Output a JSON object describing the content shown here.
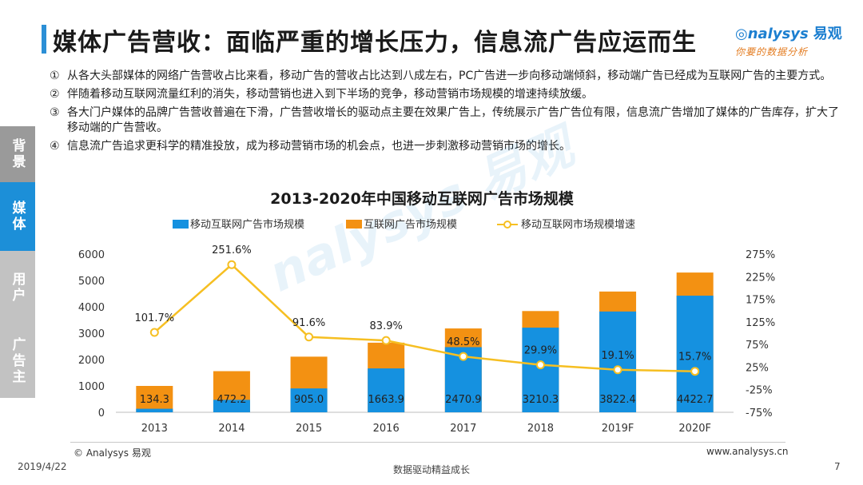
{
  "header": {
    "title": "媒体广告营收：面临严重的增长压力，信息流广告应运而生",
    "logo_text": "nalysys",
    "logo_cn": "易观",
    "logo_slogan": "你要的数据分析"
  },
  "bullets": [
    {
      "num": "①",
      "text": "从各大头部媒体的网络广告营收占比来看，移动广告的营收占比达到八成左右，PC广告进一步向移动端倾斜，移动端广告已经成为互联网广告的主要方式。"
    },
    {
      "num": "②",
      "text": "伴随着移动互联网流量红利的消失，移动营销也进入到下半场的竞争，移动营销市场规模的增速持续放缓。"
    },
    {
      "num": "③",
      "text": "各大门户媒体的品牌广告营收普遍在下滑，广告营收增长的驱动点主要在效果广告上，传统展示广告广告位有限，信息流广告增加了媒体的广告库存，扩大了移动端的广告营收。"
    },
    {
      "num": "④",
      "text": "信息流广告追求更科学的精准投放，成为移动营销市场的机会点，也进一步刺激移动营销市场的增长。"
    }
  ],
  "sidebar": {
    "items": [
      {
        "label": "背景",
        "color": "#9a9a9a"
      },
      {
        "label": "媒体",
        "color": "#1c8fd8"
      },
      {
        "label": "用户",
        "color": "#c2c2c2"
      },
      {
        "label": "广告主",
        "color": "#c2c2c2"
      }
    ]
  },
  "chart_data": {
    "type": "bar",
    "title": "2013-2020年中国移动互联网广告市场规模",
    "categories": [
      "2013",
      "2014",
      "2015",
      "2016",
      "2017",
      "2018",
      "2019F",
      "2020F"
    ],
    "series": [
      {
        "name": "移动互联网广告市场规模",
        "kind": "bar",
        "color": "#1591e0",
        "values": [
          134.3,
          472.2,
          905.0,
          1663.9,
          2470.9,
          3210.3,
          3822.4,
          4422.7
        ],
        "labels": [
          "134.3",
          "472.2",
          "905.0",
          "1663.9",
          "2470.9",
          "3210.3",
          "3822.4",
          "4422.7"
        ]
      },
      {
        "name": "互联网广告市场规模",
        "kind": "bar",
        "color": "#f39112",
        "values": [
          1000,
          1560,
          2110,
          2640,
          3180,
          3840,
          4580,
          5300
        ]
      },
      {
        "name": "移动互联网市场规模增速",
        "kind": "line",
        "axis": "right",
        "color": "#f6bf22",
        "values": [
          101.7,
          251.6,
          91.6,
          83.9,
          48.5,
          29.9,
          19.1,
          15.7
        ],
        "labels": [
          "101.7%",
          "251.6%",
          "91.6%",
          "83.9%",
          "48.5%",
          "29.9%",
          "19.1%",
          "15.7%"
        ]
      }
    ],
    "y_left": {
      "min": 0,
      "max": 6000,
      "ticks": [
        "0",
        "1000",
        "2000",
        "3000",
        "4000",
        "5000",
        "6000"
      ]
    },
    "y_right": {
      "min": -75,
      "max": 275,
      "ticks": [
        "-75%",
        "-25%",
        "25%",
        "75%",
        "125%",
        "175%",
        "225%",
        "275%"
      ]
    },
    "grid": false,
    "legend_position": "top",
    "watermark": "nalysys 易观"
  },
  "footer": {
    "copyright": "© Analysys 易观",
    "url": "www.analysys.cn",
    "date": "2019/4/22",
    "slogan": "数据驱动精益成长",
    "page": "7"
  }
}
